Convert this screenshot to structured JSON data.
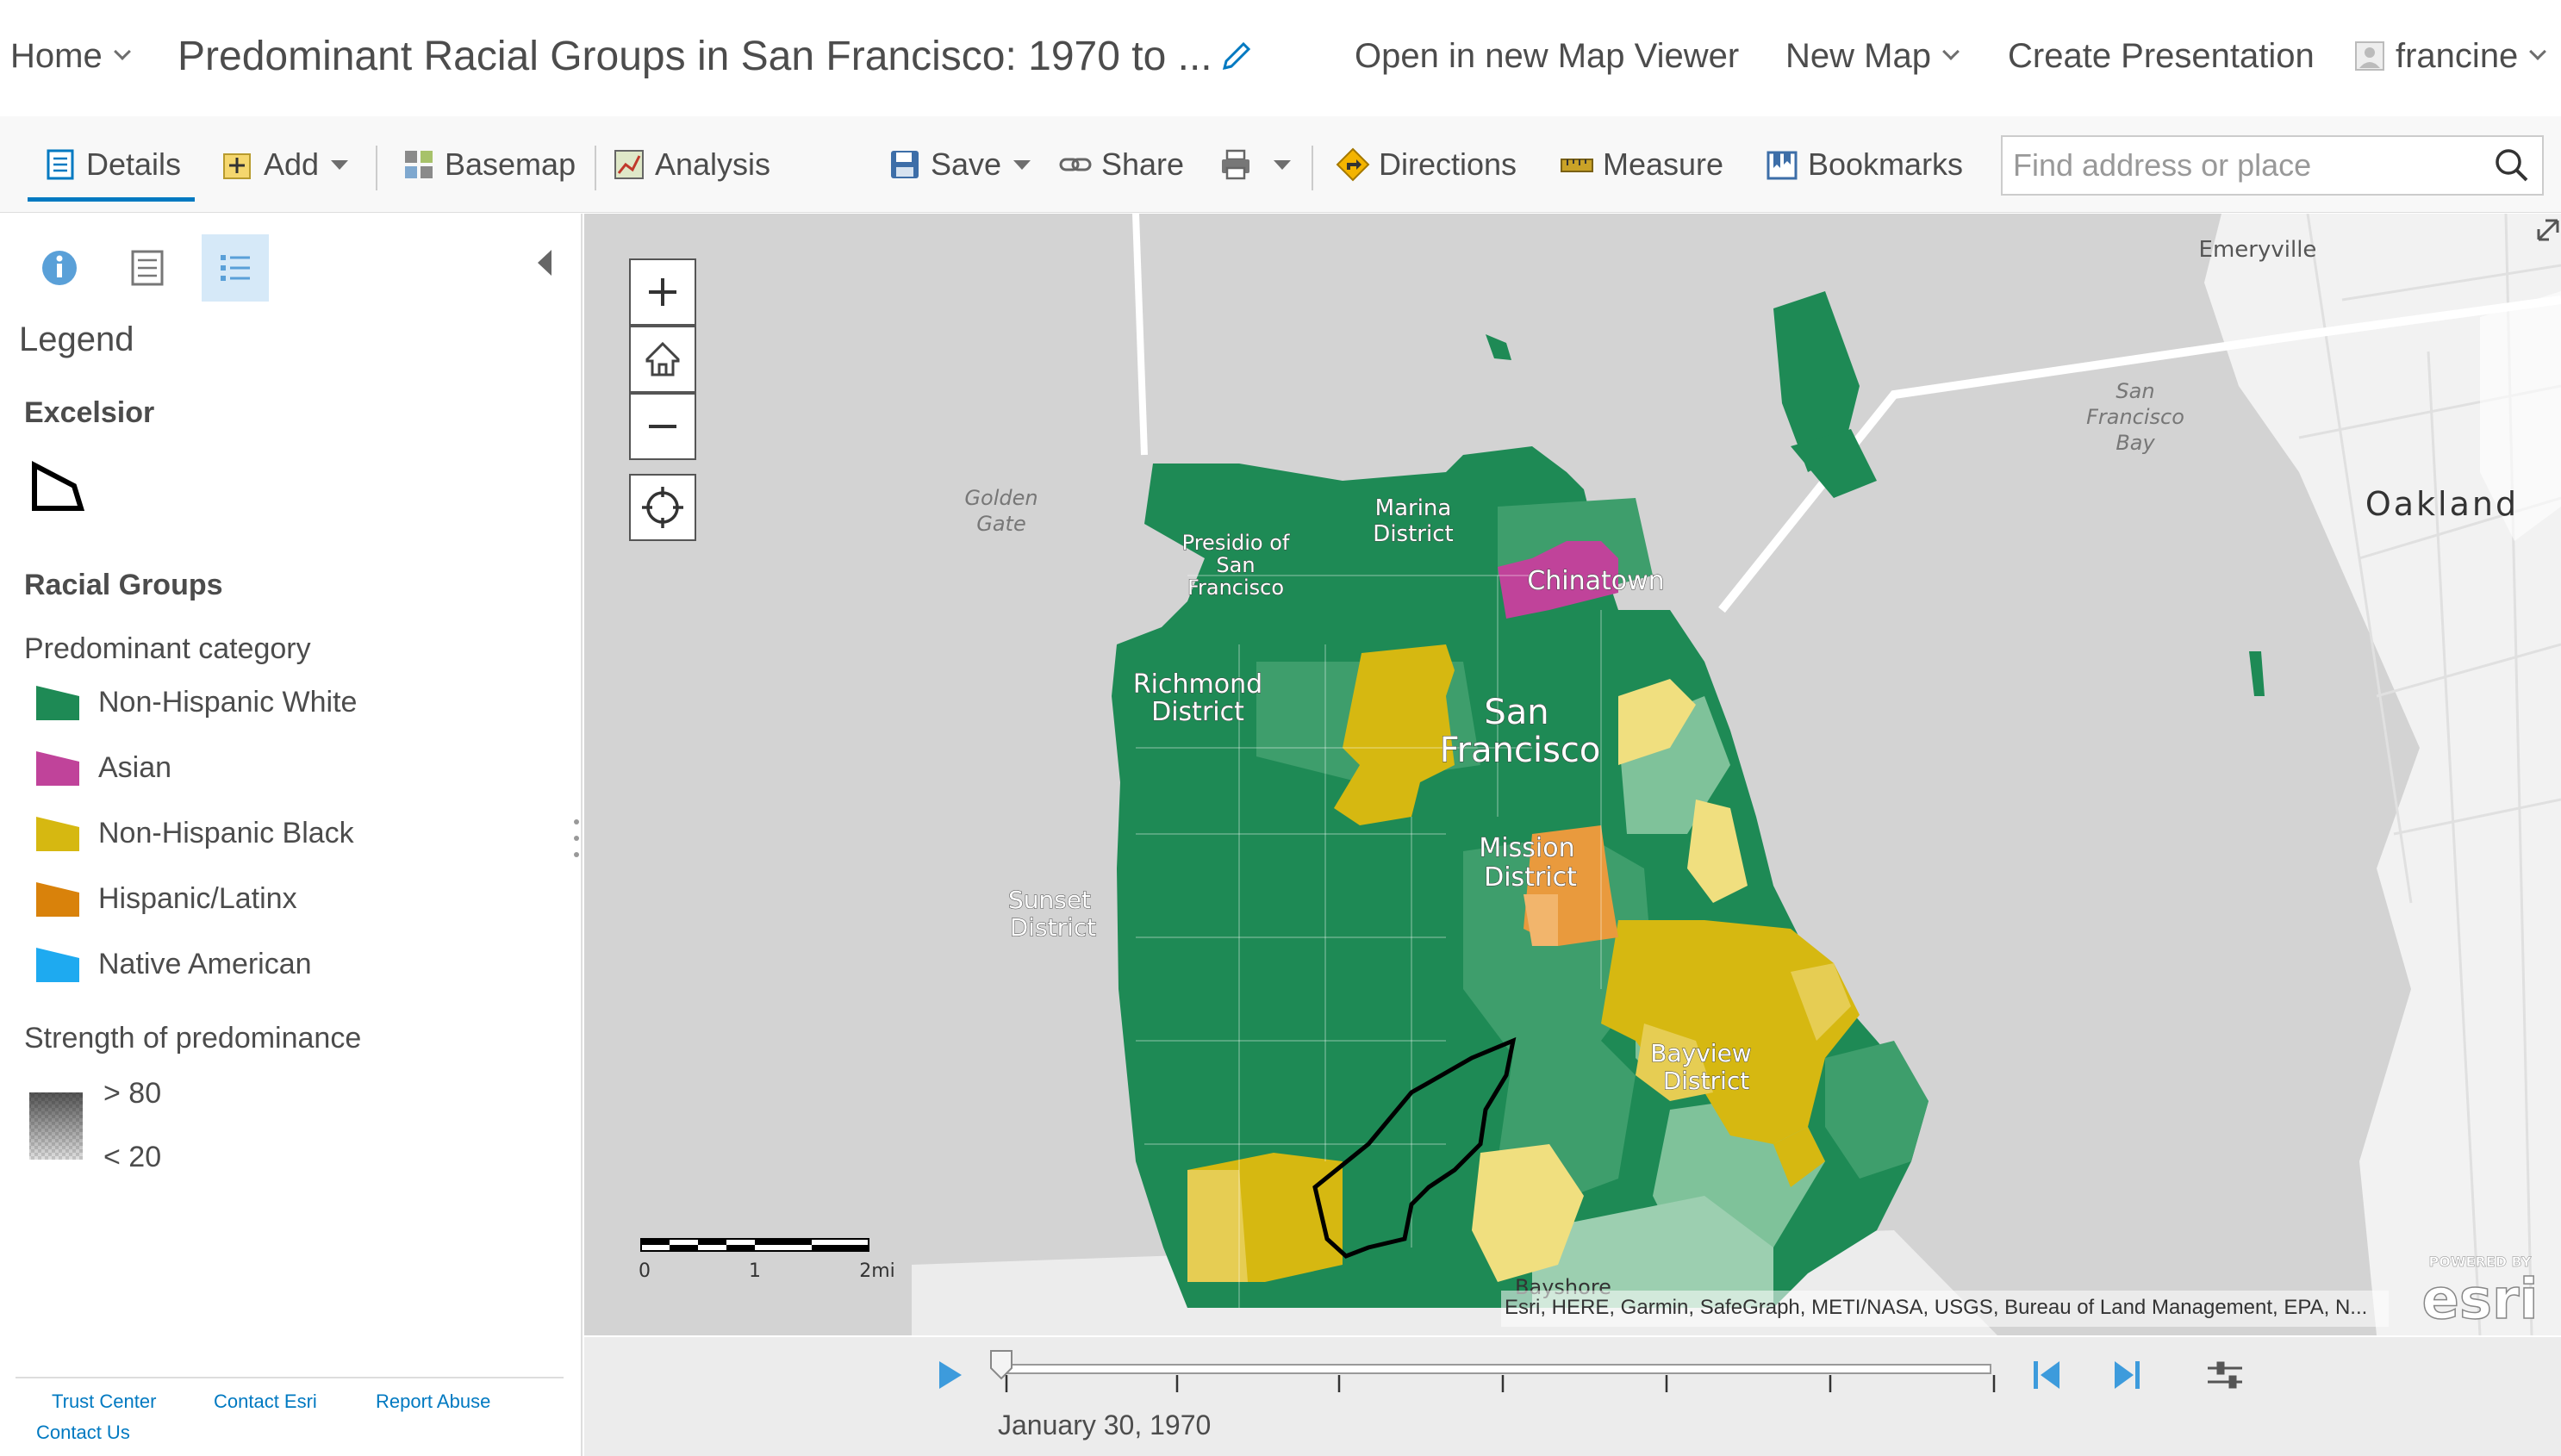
{
  "header": {
    "home_label": "Home",
    "title": "Predominant Racial Groups in San Francisco: 1970 to ...",
    "open_in_viewer": "Open in new Map Viewer",
    "new_map": "New Map",
    "create_presentation": "Create Presentation",
    "user": "francine"
  },
  "toolbar": {
    "details": "Details",
    "add": "Add",
    "basemap": "Basemap",
    "analysis": "Analysis",
    "save": "Save",
    "share": "Share",
    "directions": "Directions",
    "measure": "Measure",
    "bookmarks": "Bookmarks",
    "search_placeholder": "Find address or place"
  },
  "legend": {
    "title": "Legend",
    "layer1": "Excelsior",
    "layer2": "Racial Groups",
    "category_heading": "Predominant category",
    "categories": [
      {
        "label": "Non-Hispanic White",
        "color": "#1e8a55"
      },
      {
        "label": "Asian",
        "color": "#c0439a"
      },
      {
        "label": "Non-Hispanic Black",
        "color": "#d6b811"
      },
      {
        "label": "Hispanic/Latinx",
        "color": "#d9820b"
      },
      {
        "label": "Native American",
        "color": "#1eaaf0"
      }
    ],
    "strength_heading": "Strength of predominance",
    "strength_high": "> 80",
    "strength_low": "< 20"
  },
  "footer": {
    "trust": "Trust Center",
    "contact_esri": "Contact Esri",
    "report": "Report Abuse",
    "contact_us": "Contact Us"
  },
  "map": {
    "labels": {
      "emeryville": "Emeryville",
      "sf_bay_1": "San",
      "sf_bay_2": "Francisco",
      "sf_bay_3": "Bay",
      "oakland": "Oakland",
      "golden_1": "Golden",
      "golden_2": "Gate",
      "presidio_1": "Presidio of",
      "presidio_2": "San",
      "presidio_3": "Francisco",
      "marina_1": "Marina",
      "marina_2": "District",
      "chinatown": "Chinatown",
      "richmond_1": "Richmond",
      "richmond_2": "District",
      "sf_1": "San",
      "sf_2": "Francisco",
      "mission_1": "Mission",
      "mission_2": "District",
      "sunset_1": "Sunset",
      "sunset_2": "District",
      "bayview_1": "Bayview",
      "bayview_2": "District",
      "bayshore": "Bayshore"
    },
    "scale": {
      "s0": "0",
      "s1": "1",
      "s2": "2mi"
    },
    "attribution": "Esri, HERE, Garmin, SafeGraph, METI/NASA, USGS, Bureau of Land Management, EPA, N...",
    "esri_powered": "POWERED BY",
    "esri_logo": "esri"
  },
  "time": {
    "current": "January 30, 1970"
  }
}
